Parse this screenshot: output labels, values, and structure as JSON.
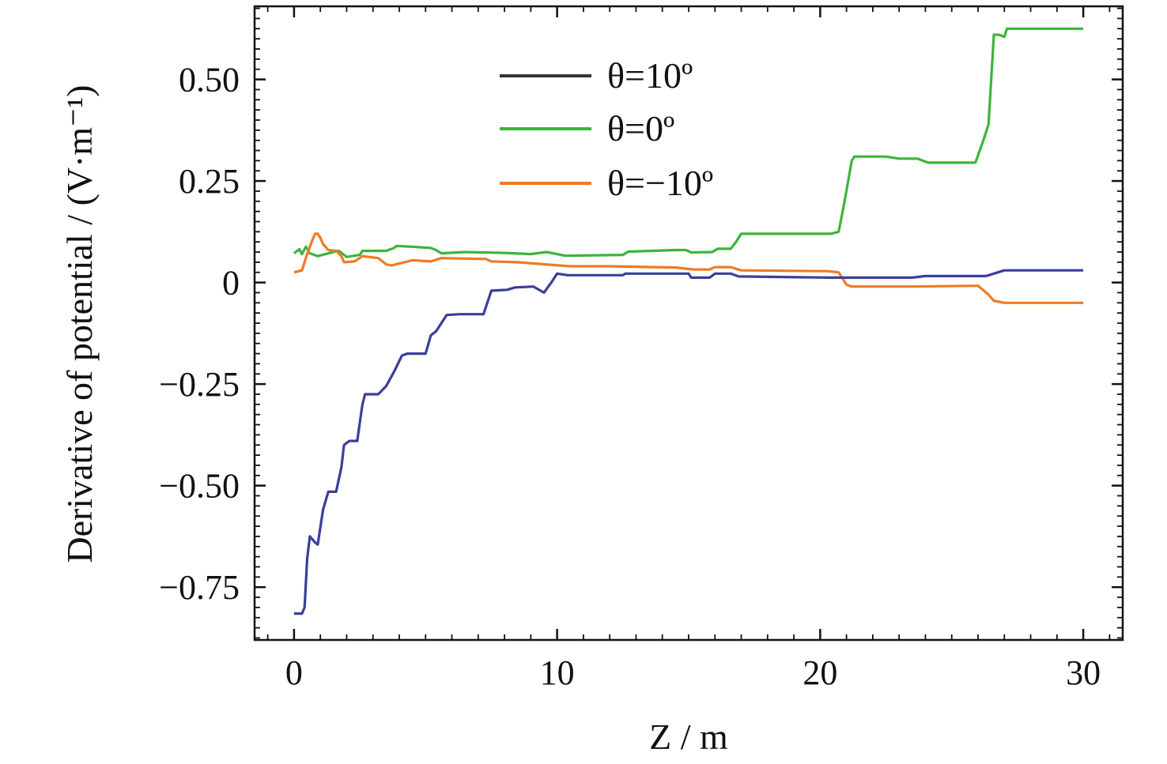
{
  "chart_data": {
    "type": "line",
    "xlabel": "Z / m",
    "ylabel": "Derivative of potential / (V·m⁻¹)",
    "xlim": [
      -1.5,
      31.5
    ],
    "ylim": [
      -0.88,
      0.68
    ],
    "x_ticks": [
      0,
      10,
      20,
      30
    ],
    "x_tick_labels": [
      "0",
      "10",
      "20",
      "30"
    ],
    "y_ticks": [
      -0.75,
      -0.5,
      -0.25,
      0,
      0.25,
      0.5
    ],
    "y_tick_labels": [
      "−0.75",
      "−0.50",
      "−0.25",
      "0",
      "0.25",
      "0.50"
    ],
    "grid": false,
    "legend_position": "top-center",
    "series": [
      {
        "name": "θ=10º",
        "color": "#3a3f9a",
        "legend_color": "#333333",
        "points": [
          [
            0,
            -0.815
          ],
          [
            0.3,
            -0.815
          ],
          [
            0.4,
            -0.8
          ],
          [
            0.5,
            -0.68
          ],
          [
            0.6,
            -0.625
          ],
          [
            0.8,
            -0.64
          ],
          [
            0.9,
            -0.645
          ],
          [
            1.1,
            -0.56
          ],
          [
            1.3,
            -0.515
          ],
          [
            1.6,
            -0.515
          ],
          [
            1.8,
            -0.455
          ],
          [
            1.9,
            -0.4
          ],
          [
            2.1,
            -0.39
          ],
          [
            2.4,
            -0.39
          ],
          [
            2.6,
            -0.3
          ],
          [
            2.7,
            -0.275
          ],
          [
            3.2,
            -0.275
          ],
          [
            3.5,
            -0.255
          ],
          [
            3.8,
            -0.22
          ],
          [
            4.1,
            -0.18
          ],
          [
            4.3,
            -0.175
          ],
          [
            5.0,
            -0.175
          ],
          [
            5.2,
            -0.13
          ],
          [
            5.4,
            -0.12
          ],
          [
            5.6,
            -0.1
          ],
          [
            5.8,
            -0.08
          ],
          [
            6.3,
            -0.078
          ],
          [
            7.2,
            -0.078
          ],
          [
            7.5,
            -0.02
          ],
          [
            8.1,
            -0.018
          ],
          [
            8.4,
            -0.012
          ],
          [
            9.1,
            -0.01
          ],
          [
            9.5,
            -0.025
          ],
          [
            9.8,
            0.002
          ],
          [
            10.0,
            0.022
          ],
          [
            10.4,
            0.018
          ],
          [
            12.5,
            0.018
          ],
          [
            12.6,
            0.022
          ],
          [
            15.0,
            0.022
          ],
          [
            15.1,
            0.012
          ],
          [
            15.8,
            0.012
          ],
          [
            16.0,
            0.022
          ],
          [
            16.6,
            0.022
          ],
          [
            16.9,
            0.015
          ],
          [
            20.4,
            0.012
          ],
          [
            20.7,
            0.012
          ],
          [
            21.0,
            0.012
          ],
          [
            23.5,
            0.012
          ],
          [
            24.0,
            0.016
          ],
          [
            26.3,
            0.016
          ],
          [
            26.6,
            0.022
          ],
          [
            27.0,
            0.03
          ],
          [
            30,
            0.03
          ]
        ]
      },
      {
        "name": "θ=0º",
        "color": "#3cb43c",
        "legend_color": "#3cb43c",
        "points": [
          [
            0,
            0.072
          ],
          [
            0.2,
            0.082
          ],
          [
            0.3,
            0.07
          ],
          [
            0.45,
            0.088
          ],
          [
            0.6,
            0.072
          ],
          [
            0.9,
            0.065
          ],
          [
            1.2,
            0.07
          ],
          [
            1.5,
            0.075
          ],
          [
            1.7,
            0.078
          ],
          [
            2.0,
            0.063
          ],
          [
            2.5,
            0.068
          ],
          [
            2.6,
            0.078
          ],
          [
            3.5,
            0.078
          ],
          [
            3.8,
            0.085
          ],
          [
            3.9,
            0.09
          ],
          [
            4.5,
            0.088
          ],
          [
            5.2,
            0.085
          ],
          [
            5.4,
            0.08
          ],
          [
            5.6,
            0.072
          ],
          [
            6.5,
            0.075
          ],
          [
            8.0,
            0.073
          ],
          [
            9.0,
            0.07
          ],
          [
            9.6,
            0.075
          ],
          [
            10.0,
            0.07
          ],
          [
            10.3,
            0.066
          ],
          [
            12.5,
            0.068
          ],
          [
            12.7,
            0.076
          ],
          [
            14.5,
            0.08
          ],
          [
            14.9,
            0.08
          ],
          [
            15.1,
            0.074
          ],
          [
            15.9,
            0.075
          ],
          [
            16.1,
            0.083
          ],
          [
            16.6,
            0.083
          ],
          [
            16.8,
            0.1
          ],
          [
            17.0,
            0.12
          ],
          [
            20.4,
            0.12
          ],
          [
            20.7,
            0.125
          ],
          [
            20.9,
            0.19
          ],
          [
            21.2,
            0.3
          ],
          [
            21.3,
            0.31
          ],
          [
            22.5,
            0.31
          ],
          [
            23.0,
            0.305
          ],
          [
            23.7,
            0.305
          ],
          [
            24.1,
            0.295
          ],
          [
            25.9,
            0.295
          ],
          [
            26.2,
            0.35
          ],
          [
            26.4,
            0.39
          ],
          [
            26.6,
            0.61
          ],
          [
            26.8,
            0.61
          ],
          [
            27.0,
            0.605
          ],
          [
            27.1,
            0.625
          ],
          [
            30,
            0.625
          ]
        ]
      },
      {
        "name": "θ=−10º",
        "color": "#f07a24",
        "legend_color": "#f07a24",
        "points": [
          [
            0,
            0.025
          ],
          [
            0.3,
            0.03
          ],
          [
            0.5,
            0.07
          ],
          [
            0.7,
            0.105
          ],
          [
            0.8,
            0.12
          ],
          [
            0.9,
            0.12
          ],
          [
            1.0,
            0.11
          ],
          [
            1.1,
            0.095
          ],
          [
            1.3,
            0.08
          ],
          [
            1.6,
            0.078
          ],
          [
            1.8,
            0.065
          ],
          [
            1.9,
            0.05
          ],
          [
            2.3,
            0.052
          ],
          [
            2.6,
            0.065
          ],
          [
            3.2,
            0.06
          ],
          [
            3.5,
            0.045
          ],
          [
            3.7,
            0.042
          ],
          [
            4.2,
            0.05
          ],
          [
            4.5,
            0.055
          ],
          [
            5.2,
            0.052
          ],
          [
            5.6,
            0.06
          ],
          [
            7.3,
            0.058
          ],
          [
            7.5,
            0.052
          ],
          [
            8.5,
            0.05
          ],
          [
            9.5,
            0.045
          ],
          [
            10.5,
            0.04
          ],
          [
            12.0,
            0.04
          ],
          [
            14.5,
            0.037
          ],
          [
            15.2,
            0.032
          ],
          [
            15.8,
            0.032
          ],
          [
            16.0,
            0.038
          ],
          [
            16.6,
            0.038
          ],
          [
            17.0,
            0.03
          ],
          [
            20.3,
            0.028
          ],
          [
            20.7,
            0.025
          ],
          [
            21.0,
            -0.005
          ],
          [
            21.2,
            -0.01
          ],
          [
            23.5,
            -0.01
          ],
          [
            26.0,
            -0.008
          ],
          [
            26.4,
            -0.03
          ],
          [
            26.6,
            -0.045
          ],
          [
            27.0,
            -0.05
          ],
          [
            30,
            -0.05
          ]
        ]
      }
    ]
  }
}
